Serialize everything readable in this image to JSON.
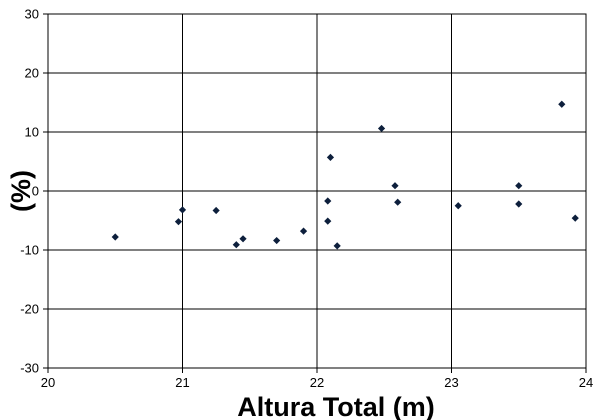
{
  "chart_data": {
    "type": "scatter",
    "title": "",
    "xlabel": "Altura Total (m)",
    "ylabel": "(%)",
    "xlim": [
      20,
      24
    ],
    "ylim": [
      -30,
      30
    ],
    "x_ticks": [
      20,
      21,
      22,
      23,
      24
    ],
    "y_ticks": [
      -30,
      -20,
      -10,
      0,
      10,
      20,
      30
    ],
    "x_tick_labels": [
      "20",
      "21",
      "22",
      "23",
      "24"
    ],
    "y_tick_labels": [
      "-30",
      "-20",
      "-10",
      "0",
      "10",
      "20",
      "30"
    ],
    "grid": true,
    "legend": "none",
    "marker": "diamond",
    "marker_color": "#0d1f3c",
    "grid_color": "#000000",
    "series": [
      {
        "points": [
          {
            "x": 20.5,
            "y": -7.8
          },
          {
            "x": 20.97,
            "y": -5.2
          },
          {
            "x": 21.0,
            "y": -3.2
          },
          {
            "x": 21.25,
            "y": -3.3
          },
          {
            "x": 21.4,
            "y": -9.1
          },
          {
            "x": 21.45,
            "y": -8.1
          },
          {
            "x": 21.7,
            "y": -8.4
          },
          {
            "x": 21.9,
            "y": -6.8
          },
          {
            "x": 22.08,
            "y": -1.7
          },
          {
            "x": 22.08,
            "y": -5.1
          },
          {
            "x": 22.1,
            "y": 5.7
          },
          {
            "x": 22.15,
            "y": -9.3
          },
          {
            "x": 22.48,
            "y": 10.6
          },
          {
            "x": 22.58,
            "y": 0.9
          },
          {
            "x": 22.6,
            "y": -1.9
          },
          {
            "x": 23.05,
            "y": -2.5
          },
          {
            "x": 23.5,
            "y": 0.9
          },
          {
            "x": 23.5,
            "y": -2.2
          },
          {
            "x": 23.82,
            "y": 14.7
          },
          {
            "x": 23.92,
            "y": -4.6
          }
        ]
      }
    ]
  }
}
